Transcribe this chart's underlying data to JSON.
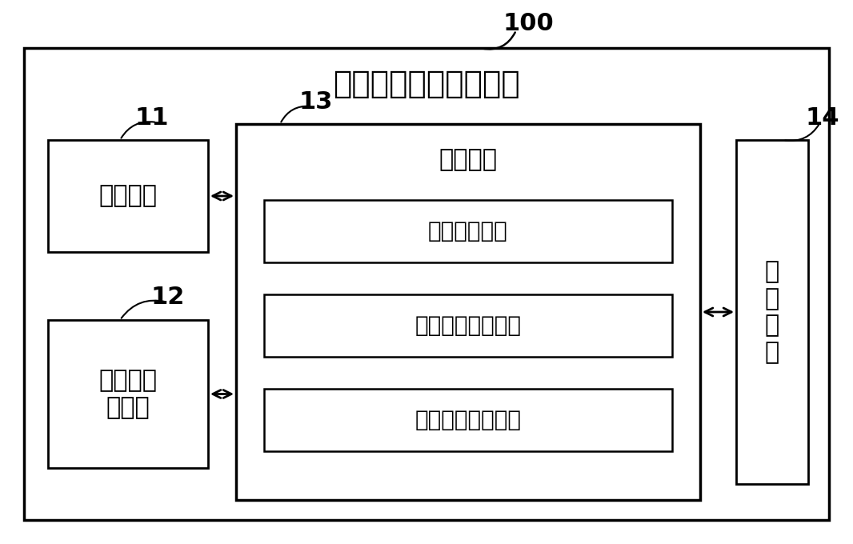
{
  "title": "家居设备移动遥控设备",
  "label_100": "100",
  "label_11": "11",
  "label_12": "12",
  "label_13": "13",
  "label_14": "14",
  "box_positioning": "定位单元",
  "box_comm": "近距离通\n讯单元",
  "box_control_title": "控制单元",
  "box_module1": "距离运算模块",
  "box_module2": "需求指令查询模块",
  "box_module3": "指令信号发送模块",
  "box_storage": "存\n储\n单\n元",
  "bg_color": "#ffffff",
  "box_color": "#ffffff",
  "border_color": "#000000",
  "text_color": "#000000",
  "font_size_title": 28,
  "font_size_number": 22,
  "font_size_box": 22,
  "font_size_module": 20
}
